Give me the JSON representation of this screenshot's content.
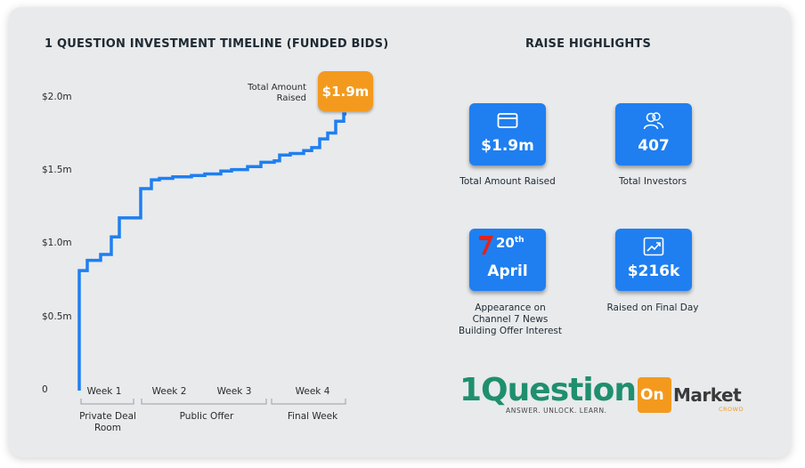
{
  "chart_data": {
    "type": "line",
    "title": "1 QUESTION INVESTMENT TIMELINE (FUNDED BIDS)",
    "y_ticks": [
      "0",
      "$0.5m",
      "$1.0m",
      "$1.5m",
      "$2.0m"
    ],
    "y_tick_values": [
      0,
      0.5,
      1.0,
      1.5,
      2.0
    ],
    "ylim": [
      0,
      2.0
    ],
    "x_weeks": [
      "Week 1",
      "Week 2",
      "Week 3",
      "Week 4"
    ],
    "phases": [
      "Private Deal\nRoom",
      "Public Offer",
      "Final Week"
    ],
    "line_color": "#1f7ff0",
    "step_points": [
      [
        0.0,
        0.0
      ],
      [
        0.0,
        0.82
      ],
      [
        0.03,
        0.82
      ],
      [
        0.03,
        0.89
      ],
      [
        0.08,
        0.89
      ],
      [
        0.08,
        0.93
      ],
      [
        0.12,
        0.93
      ],
      [
        0.12,
        1.05
      ],
      [
        0.15,
        1.05
      ],
      [
        0.15,
        1.18
      ],
      [
        0.23,
        1.18
      ],
      [
        0.23,
        1.38
      ],
      [
        0.27,
        1.38
      ],
      [
        0.27,
        1.44
      ],
      [
        0.3,
        1.44
      ],
      [
        0.3,
        1.45
      ],
      [
        0.35,
        1.45
      ],
      [
        0.35,
        1.46
      ],
      [
        0.42,
        1.46
      ],
      [
        0.42,
        1.47
      ],
      [
        0.47,
        1.47
      ],
      [
        0.47,
        1.48
      ],
      [
        0.53,
        1.48
      ],
      [
        0.53,
        1.5
      ],
      [
        0.57,
        1.5
      ],
      [
        0.57,
        1.51
      ],
      [
        0.63,
        1.51
      ],
      [
        0.63,
        1.53
      ],
      [
        0.68,
        1.53
      ],
      [
        0.68,
        1.56
      ],
      [
        0.73,
        1.56
      ],
      [
        0.73,
        1.57
      ],
      [
        0.75,
        1.57
      ],
      [
        0.75,
        1.61
      ],
      [
        0.79,
        1.61
      ],
      [
        0.79,
        1.62
      ],
      [
        0.84,
        1.62
      ],
      [
        0.84,
        1.64
      ],
      [
        0.87,
        1.64
      ],
      [
        0.87,
        1.66
      ],
      [
        0.9,
        1.66
      ],
      [
        0.9,
        1.72
      ],
      [
        0.93,
        1.72
      ],
      [
        0.93,
        1.76
      ],
      [
        0.96,
        1.76
      ],
      [
        0.96,
        1.84
      ],
      [
        0.99,
        1.84
      ],
      [
        0.99,
        1.89
      ],
      [
        1.0,
        1.89
      ]
    ],
    "callout": {
      "label": "Total Amount\nRaised",
      "value": "$1.9m",
      "color": "#f39a1e"
    }
  },
  "highlights": {
    "title": "RAISE HIGHLIGHTS",
    "items": [
      {
        "icon": "credit-card-icon",
        "value": "$1.9m",
        "caption": "Total Amount Raised"
      },
      {
        "icon": "investors-icon",
        "value": "407",
        "caption": "Total Investors"
      },
      {
        "icon": "channel-7-icon",
        "day": "20",
        "day_suffix": "th",
        "month": "April",
        "caption": "Appearance on\nChannel 7 News\nBuilding Offer Interest"
      },
      {
        "icon": "growth-chart-icon",
        "value": "$216k",
        "caption": "Raised on Final Day"
      }
    ],
    "box_color": "#1f7ff0"
  },
  "logos": {
    "question": {
      "text": "1Question",
      "tagline": "ANSWER. UNLOCK. LEARN."
    },
    "onmarket": {
      "on": "On",
      "market": "Market",
      "crowd": "CROWD"
    }
  }
}
